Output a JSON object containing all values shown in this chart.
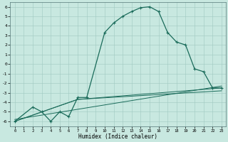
{
  "xlabel": "Humidex (Indice chaleur)",
  "xlim": [
    -0.5,
    23.5
  ],
  "ylim": [
    -6.5,
    6.5
  ],
  "xticks": [
    0,
    1,
    2,
    3,
    4,
    5,
    6,
    7,
    8,
    9,
    10,
    11,
    12,
    13,
    14,
    15,
    16,
    17,
    18,
    19,
    20,
    21,
    22,
    23
  ],
  "yticks": [
    -6,
    -5,
    -4,
    -3,
    -2,
    -1,
    0,
    1,
    2,
    3,
    4,
    5,
    6
  ],
  "bg_color": "#c8e8e0",
  "grid_color": "#a0c8c0",
  "line_color": "#1a6b5a",
  "line1_x": [
    0,
    2,
    3,
    4,
    5,
    6,
    7,
    8,
    10,
    11,
    12,
    13,
    14,
    15,
    16,
    17,
    18,
    19,
    20,
    21,
    22,
    23
  ],
  "line1_y": [
    -6.0,
    -4.5,
    -5.0,
    -6.0,
    -5.0,
    -5.5,
    -3.5,
    -3.5,
    3.3,
    4.3,
    5.0,
    5.5,
    5.9,
    6.0,
    5.5,
    3.3,
    2.3,
    2.0,
    -0.5,
    -0.8,
    -2.5,
    -2.5
  ],
  "line2_x": [
    0,
    7,
    23
  ],
  "line2_y": [
    -6.0,
    -3.7,
    -2.5
  ],
  "line3_x": [
    0,
    7,
    23
  ],
  "line3_y": [
    -6.0,
    -3.7,
    -2.8
  ],
  "line4_x": [
    0,
    23
  ],
  "line4_y": [
    -5.8,
    -2.3
  ]
}
